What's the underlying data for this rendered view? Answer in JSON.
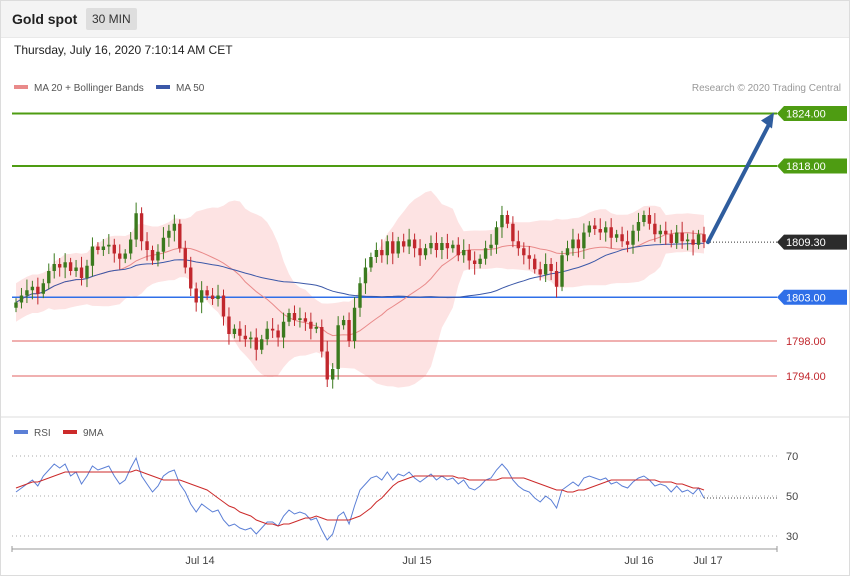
{
  "header": {
    "title": "Gold spot",
    "interval": "30 MIN",
    "datetime": "Thursday, July 16, 2020 7:10:14 AM CET"
  },
  "colors": {
    "up": "#3b7a1e",
    "down": "#c1272d",
    "ma20": "#e98a8a",
    "band_fill": "#fde3e3",
    "ma50": "#3b58a8",
    "green_level": "#4e9c12",
    "blue_level": "#2f6fe8",
    "red_level": "#e06060",
    "arrow": "#2f5d9e",
    "rsi": "#5b7fd6",
    "rsi_ma": "#cc2a2a"
  },
  "legend": {
    "ma20": "MA 20 + Bollinger Bands",
    "ma50": "MA 50",
    "credit": "Research © 2020 Trading Central"
  },
  "rsi_legend": {
    "rsi": "RSI",
    "ma": "9MA"
  },
  "chart_data": [
    {
      "type": "candlestick",
      "title": "",
      "ylim": [
        1790,
        1826
      ],
      "current_price": 1809.3,
      "levels": [
        {
          "label": "1824.00",
          "value": 1824.0,
          "kind": "target"
        },
        {
          "label": "1818.00",
          "value": 1818.0,
          "kind": "target"
        },
        {
          "label": "1809.30",
          "value": 1809.3,
          "kind": "current"
        },
        {
          "label": "1803.00",
          "value": 1803.0,
          "kind": "pivot"
        },
        {
          "label": "1798.00",
          "value": 1798.0,
          "kind": "support"
        },
        {
          "label": "1794.00",
          "value": 1794.0,
          "kind": "support"
        }
      ],
      "projection": {
        "from": 1809.3,
        "to": 1824.0
      },
      "x_ticks": [
        "Jul 14",
        "Jul 15",
        "Jul 16",
        "Jul 17"
      ],
      "closes": [
        1802.4,
        1803.2,
        1803.8,
        1804.2,
        1803.4,
        1804.6,
        1806.0,
        1806.8,
        1806.4,
        1807.0,
        1806.0,
        1806.4,
        1805.2,
        1806.6,
        1808.8,
        1808.4,
        1808.8,
        1809.0,
        1808.0,
        1807.4,
        1808.0,
        1809.6,
        1812.6,
        1809.4,
        1808.4,
        1807.2,
        1808.2,
        1809.8,
        1810.6,
        1811.4,
        1808.6,
        1806.4,
        1804.0,
        1802.4,
        1803.8,
        1803.2,
        1802.8,
        1803.2,
        1800.8,
        1798.8,
        1799.4,
        1798.6,
        1798.2,
        1798.4,
        1797.0,
        1798.2,
        1799.4,
        1799.2,
        1798.4,
        1800.2,
        1801.2,
        1800.4,
        1800.6,
        1800.2,
        1799.4,
        1799.6,
        1796.8,
        1793.6,
        1794.8,
        1799.8,
        1800.4,
        1798.0,
        1801.8,
        1804.6,
        1806.4,
        1807.6,
        1808.4,
        1807.8,
        1809.4,
        1808.0,
        1809.4,
        1808.8,
        1809.6,
        1808.6,
        1807.8,
        1808.6,
        1809.2,
        1808.4,
        1809.2,
        1808.6,
        1809.0,
        1807.8,
        1808.4,
        1807.2,
        1806.8,
        1807.4,
        1808.6,
        1809.0,
        1811.0,
        1812.4,
        1811.4,
        1809.4,
        1808.6,
        1807.8,
        1807.4,
        1806.2,
        1805.6,
        1806.8,
        1806.0,
        1804.2,
        1807.8,
        1808.6,
        1809.6,
        1808.6,
        1810.4,
        1811.2,
        1810.8,
        1810.4,
        1811.0,
        1809.8,
        1810.2,
        1809.4,
        1809.0,
        1810.6,
        1811.6,
        1812.4,
        1811.4,
        1810.2,
        1810.6,
        1810.2,
        1809.2,
        1810.4,
        1809.4,
        1809.6,
        1809.0,
        1810.2,
        1809.3
      ]
    },
    {
      "type": "line",
      "title": "",
      "ylim": [
        25,
        75
      ],
      "y_ticks": [
        70,
        50,
        30
      ],
      "series": [
        {
          "name": "RSI",
          "values": [
            52,
            54,
            56,
            58,
            55,
            60,
            63,
            66,
            64,
            66,
            60,
            62,
            56,
            60,
            65,
            63,
            64,
            65,
            60,
            56,
            58,
            64,
            69,
            60,
            56,
            52,
            55,
            60,
            62,
            63,
            56,
            52,
            46,
            42,
            46,
            44,
            42,
            43,
            38,
            35,
            36,
            34,
            33,
            34,
            31,
            34,
            37,
            37,
            35,
            40,
            43,
            41,
            42,
            41,
            38,
            39,
            33,
            28,
            31,
            40,
            42,
            36,
            45,
            53,
            56,
            59,
            60,
            58,
            62,
            58,
            61,
            60,
            62,
            59,
            57,
            59,
            61,
            58,
            60,
            58,
            59,
            56,
            58,
            54,
            53,
            55,
            58,
            59,
            63,
            66,
            63,
            58,
            55,
            53,
            52,
            49,
            47,
            50,
            48,
            44,
            53,
            55,
            57,
            55,
            59,
            60,
            59,
            58,
            59,
            56,
            57,
            55,
            54,
            57,
            59,
            60,
            58,
            55,
            56,
            55,
            52,
            55,
            52,
            53,
            51,
            54,
            49
          ]
        },
        {
          "name": "9MA",
          "values": [
            54,
            55,
            56,
            57,
            57,
            58,
            59,
            60,
            61,
            62,
            62,
            62,
            62,
            62,
            62,
            62,
            62,
            62,
            62,
            62,
            62,
            62,
            63,
            62,
            61,
            60,
            59,
            58,
            58,
            58,
            58,
            57,
            56,
            55,
            54,
            53,
            51,
            49,
            47,
            45,
            44,
            42,
            41,
            40,
            38,
            37,
            36,
            36,
            35,
            36,
            36,
            37,
            38,
            39,
            39,
            40,
            39,
            38,
            38,
            38,
            38,
            38,
            39,
            40,
            42,
            44,
            47,
            49,
            52,
            55,
            57,
            58,
            59,
            60,
            60,
            60,
            60,
            60,
            60,
            60,
            60,
            59,
            59,
            58,
            58,
            58,
            58,
            58,
            58,
            59,
            59,
            59,
            59,
            59,
            58,
            57,
            56,
            55,
            54,
            53,
            53,
            52,
            52,
            53,
            53,
            54,
            55,
            56,
            57,
            58,
            58,
            58,
            58,
            58,
            58,
            58,
            58,
            58,
            57,
            57,
            57,
            56,
            56,
            55,
            54,
            54,
            53
          ]
        }
      ]
    }
  ]
}
